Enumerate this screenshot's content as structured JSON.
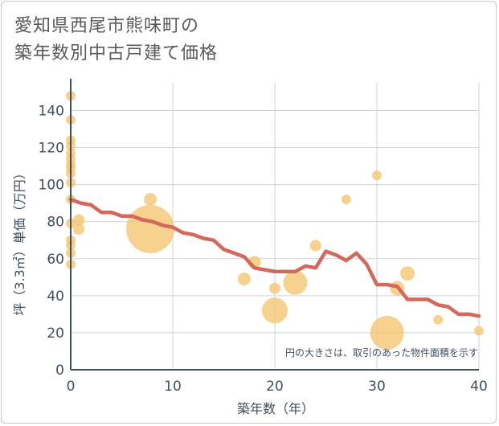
{
  "title_lines": [
    "愛知県西尾市熊味町の",
    "築年数別中古戸建て価格"
  ],
  "colors": {
    "bubble": "#f5c56f",
    "line": "#d4685a",
    "grid": "#c9d4df",
    "axis": "#3f4f5f"
  },
  "chart_data": {
    "type": "scatter",
    "title": "愛知県西尾市熊味町の築年数別中古戸建て価格",
    "xlabel": "築年数（年）",
    "ylabel": "坪（3.3㎡）単価（万円）",
    "xlim": [
      0,
      40
    ],
    "ylim": [
      0,
      155
    ],
    "xticks": [
      0,
      10,
      20,
      30,
      40
    ],
    "yticks": [
      0,
      20,
      40,
      60,
      80,
      100,
      120,
      140
    ],
    "grid": true,
    "note": "円の大きさは、取引のあった物件面積を示す",
    "scatter": [
      {
        "x": 0,
        "y": 148,
        "size": 6
      },
      {
        "x": 0,
        "y": 135,
        "size": 6
      },
      {
        "x": 0,
        "y": 124,
        "size": 6
      },
      {
        "x": 0,
        "y": 121,
        "size": 6
      },
      {
        "x": 0,
        "y": 117,
        "size": 6
      },
      {
        "x": 0,
        "y": 114,
        "size": 6
      },
      {
        "x": 0,
        "y": 111,
        "size": 6
      },
      {
        "x": 0,
        "y": 109,
        "size": 6
      },
      {
        "x": 0,
        "y": 106,
        "size": 6
      },
      {
        "x": 0,
        "y": 101,
        "size": 6
      },
      {
        "x": 0,
        "y": 92,
        "size": 6
      },
      {
        "x": 0,
        "y": 79,
        "size": 6
      },
      {
        "x": 0,
        "y": 70,
        "size": 6
      },
      {
        "x": 0,
        "y": 67,
        "size": 6
      },
      {
        "x": 0,
        "y": 63,
        "size": 6
      },
      {
        "x": 0,
        "y": 57,
        "size": 6
      },
      {
        "x": 0.8,
        "y": 81,
        "size": 7
      },
      {
        "x": 0.8,
        "y": 76,
        "size": 7
      },
      {
        "x": 7.8,
        "y": 92,
        "size": 8
      },
      {
        "x": 7.8,
        "y": 76,
        "size": 30
      },
      {
        "x": 17,
        "y": 49,
        "size": 8
      },
      {
        "x": 18,
        "y": 58,
        "size": 8
      },
      {
        "x": 20,
        "y": 44,
        "size": 7
      },
      {
        "x": 20,
        "y": 32,
        "size": 16
      },
      {
        "x": 22,
        "y": 47,
        "size": 15
      },
      {
        "x": 24,
        "y": 67,
        "size": 7
      },
      {
        "x": 27,
        "y": 92,
        "size": 6
      },
      {
        "x": 30,
        "y": 105,
        "size": 6
      },
      {
        "x": 31,
        "y": 20,
        "size": 21
      },
      {
        "x": 32,
        "y": 44,
        "size": 9
      },
      {
        "x": 33,
        "y": 52,
        "size": 9
      },
      {
        "x": 36,
        "y": 27,
        "size": 6
      },
      {
        "x": 40,
        "y": 21,
        "size": 6
      }
    ],
    "trend_line": {
      "x": [
        0,
        1,
        2,
        3,
        4,
        5,
        6,
        7,
        8,
        9,
        10,
        11,
        12,
        13,
        14,
        15,
        16,
        17,
        18,
        19,
        20,
        21,
        22,
        23,
        24,
        25,
        26,
        27,
        28,
        29,
        30,
        31,
        32,
        33,
        34,
        35,
        36,
        37,
        38,
        39,
        40
      ],
      "y": [
        92,
        90,
        89,
        85,
        85,
        83,
        83,
        81,
        80,
        78,
        77,
        74,
        73,
        71,
        70,
        65,
        63,
        61,
        55,
        54,
        53,
        53,
        53,
        56,
        55,
        64,
        62,
        59,
        63,
        57,
        46,
        46,
        45,
        38,
        38,
        38,
        35,
        34,
        30,
        30,
        29
      ]
    }
  }
}
